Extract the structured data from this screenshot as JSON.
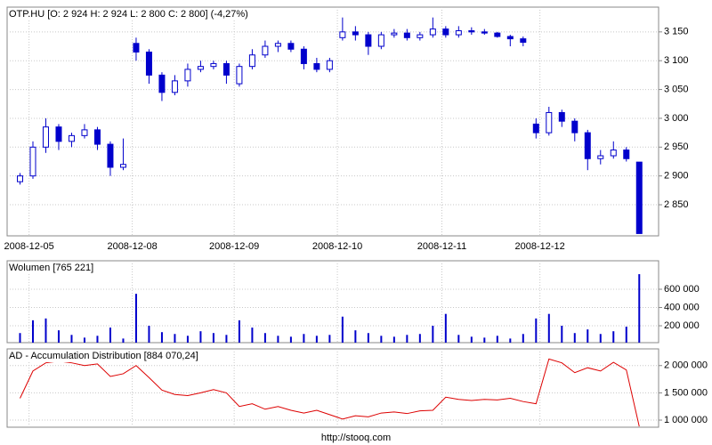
{
  "chart_data": [
    {
      "type": "candlestick",
      "title": "OTP.HU [O: 2 924  H: 2 924  L: 2 800  C: 2 800] (-4,27%)",
      "color": "#0000cc",
      "grid": true,
      "x": [
        1,
        2,
        3,
        4,
        5,
        6,
        7,
        8,
        9,
        10,
        11,
        12,
        13,
        14,
        15,
        16,
        17,
        18,
        19,
        20,
        21,
        22,
        23,
        24,
        25,
        26,
        27,
        28,
        29,
        30,
        31,
        32,
        33,
        34,
        35,
        36,
        37,
        38,
        39,
        40,
        41,
        42,
        43,
        44,
        45,
        46,
        47,
        48,
        49
      ],
      "open": [
        2890,
        2900,
        2950,
        2985,
        2960,
        2970,
        2980,
        2955,
        2915,
        3130,
        3115,
        3075,
        3045,
        3065,
        3085,
        3090,
        3095,
        3060,
        3090,
        3110,
        3125,
        3130,
        3120,
        3095,
        3085,
        3140,
        3150,
        3145,
        3125,
        3145,
        3148,
        3140,
        3145,
        3155,
        3145,
        3152,
        3150,
        3148,
        3142,
        3138,
        2990,
        2975,
        3010,
        2995,
        2975,
        2930,
        2935,
        2945,
        2924
      ],
      "high": [
        2905,
        2960,
        3000,
        2990,
        2975,
        2990,
        2985,
        2960,
        2965,
        3140,
        3120,
        3080,
        3075,
        3095,
        3100,
        3100,
        3100,
        3095,
        3120,
        3135,
        3135,
        3135,
        3125,
        3105,
        3105,
        3175,
        3160,
        3150,
        3150,
        3155,
        3155,
        3150,
        3175,
        3160,
        3160,
        3158,
        3155,
        3150,
        3145,
        3142,
        3000,
        3020,
        3015,
        3000,
        2980,
        2945,
        2960,
        2950,
        2924
      ],
      "low": [
        2885,
        2895,
        2940,
        2945,
        2950,
        2965,
        2945,
        2900,
        2910,
        3100,
        3060,
        3030,
        3040,
        3055,
        3080,
        3085,
        3060,
        3055,
        3085,
        3105,
        3115,
        3115,
        3085,
        3080,
        3080,
        3135,
        3135,
        3110,
        3120,
        3140,
        3135,
        3135,
        3140,
        3140,
        3140,
        3145,
        3145,
        3140,
        3125,
        3125,
        2965,
        2970,
        2985,
        2960,
        2910,
        2920,
        2930,
        2925,
        2800
      ],
      "close": [
        2900,
        2950,
        2985,
        2960,
        2970,
        2980,
        2955,
        2915,
        2920,
        3115,
        3075,
        3045,
        3065,
        3085,
        3090,
        3095,
        3075,
        3090,
        3110,
        3125,
        3130,
        3120,
        3095,
        3085,
        3100,
        3150,
        3145,
        3125,
        3145,
        3148,
        3140,
        3145,
        3155,
        3145,
        3152,
        3150,
        3148,
        3142,
        3138,
        3132,
        2975,
        3010,
        2995,
        2975,
        2930,
        2935,
        2945,
        2930,
        2800
      ],
      "xlim": [
        0,
        50.5
      ],
      "xticks": [
        {
          "value": 1.7,
          "label": "2008-12-05"
        },
        {
          "value": 9.7,
          "label": "2008-12-08"
        },
        {
          "value": 17.6,
          "label": "2008-12-09"
        },
        {
          "value": 25.6,
          "label": "2008-12-10"
        },
        {
          "value": 33.7,
          "label": "2008-12-11"
        },
        {
          "value": 41.3,
          "label": "2008-12-12"
        }
      ],
      "ylim": [
        2796,
        3193
      ],
      "yticks": [
        {
          "value": 2850,
          "label": "2 850"
        },
        {
          "value": 2900,
          "label": "2 900"
        },
        {
          "value": 2950,
          "label": "2 950"
        },
        {
          "value": 3000,
          "label": "3 000"
        },
        {
          "value": 3050,
          "label": "3 050"
        },
        {
          "value": 3100,
          "label": "3 100"
        },
        {
          "value": 3150,
          "label": "3 150"
        }
      ]
    },
    {
      "type": "bar",
      "title": "Wolumen [765 221]",
      "color": "#0000cc",
      "grid": true,
      "x": [
        1,
        2,
        3,
        4,
        5,
        6,
        7,
        8,
        9,
        10,
        11,
        12,
        13,
        14,
        15,
        16,
        17,
        18,
        19,
        20,
        21,
        22,
        23,
        24,
        25,
        26,
        27,
        28,
        29,
        30,
        31,
        32,
        33,
        34,
        35,
        36,
        37,
        38,
        39,
        40,
        41,
        42,
        43,
        44,
        45,
        46,
        47,
        48,
        49
      ],
      "values": [
        120000,
        260000,
        280000,
        150000,
        100000,
        70000,
        90000,
        180000,
        60000,
        550000,
        200000,
        130000,
        110000,
        90000,
        140000,
        120000,
        100000,
        260000,
        180000,
        120000,
        90000,
        80000,
        110000,
        90000,
        100000,
        300000,
        150000,
        120000,
        90000,
        80000,
        100000,
        110000,
        200000,
        330000,
        100000,
        80000,
        70000,
        90000,
        60000,
        110000,
        280000,
        330000,
        200000,
        120000,
        160000,
        110000,
        140000,
        190000,
        765221
      ],
      "xlim": [
        0,
        50.5
      ],
      "ylim": [
        15000,
        912000
      ],
      "yticks": [
        {
          "value": 200000,
          "label": "200 000"
        },
        {
          "value": 400000,
          "label": "400 000"
        },
        {
          "value": 600000,
          "label": "600 000"
        }
      ]
    },
    {
      "type": "line",
      "title": "AD - Accumulation Distribution [884 070,24]",
      "color": "#dd0000",
      "grid": true,
      "x": [
        1,
        2,
        3,
        4,
        5,
        6,
        7,
        8,
        9,
        10,
        11,
        12,
        13,
        14,
        15,
        16,
        17,
        18,
        19,
        20,
        21,
        22,
        23,
        24,
        25,
        26,
        27,
        28,
        29,
        30,
        31,
        32,
        33,
        34,
        35,
        36,
        37,
        38,
        39,
        40,
        41,
        42,
        43,
        44,
        45,
        46,
        47,
        48,
        49
      ],
      "values": [
        1400000,
        1900000,
        2050000,
        2080000,
        2050000,
        2000000,
        2030000,
        1800000,
        1850000,
        2000000,
        1780000,
        1550000,
        1470000,
        1450000,
        1500000,
        1560000,
        1500000,
        1250000,
        1300000,
        1200000,
        1250000,
        1180000,
        1130000,
        1180000,
        1100000,
        1020000,
        1080000,
        1060000,
        1130000,
        1150000,
        1120000,
        1170000,
        1180000,
        1420000,
        1380000,
        1360000,
        1380000,
        1370000,
        1400000,
        1340000,
        1300000,
        2120000,
        2050000,
        1870000,
        1960000,
        1900000,
        2060000,
        1920000,
        884070.24
      ],
      "xlim": [
        0,
        50.5
      ],
      "ylim": [
        870000,
        2306000
      ],
      "yticks": [
        {
          "value": 1000000,
          "label": "1 000 000"
        },
        {
          "value": 1500000,
          "label": "1 500 000"
        },
        {
          "value": 2000000,
          "label": "2 000 000"
        }
      ]
    }
  ],
  "footer": "http://stooq.com"
}
